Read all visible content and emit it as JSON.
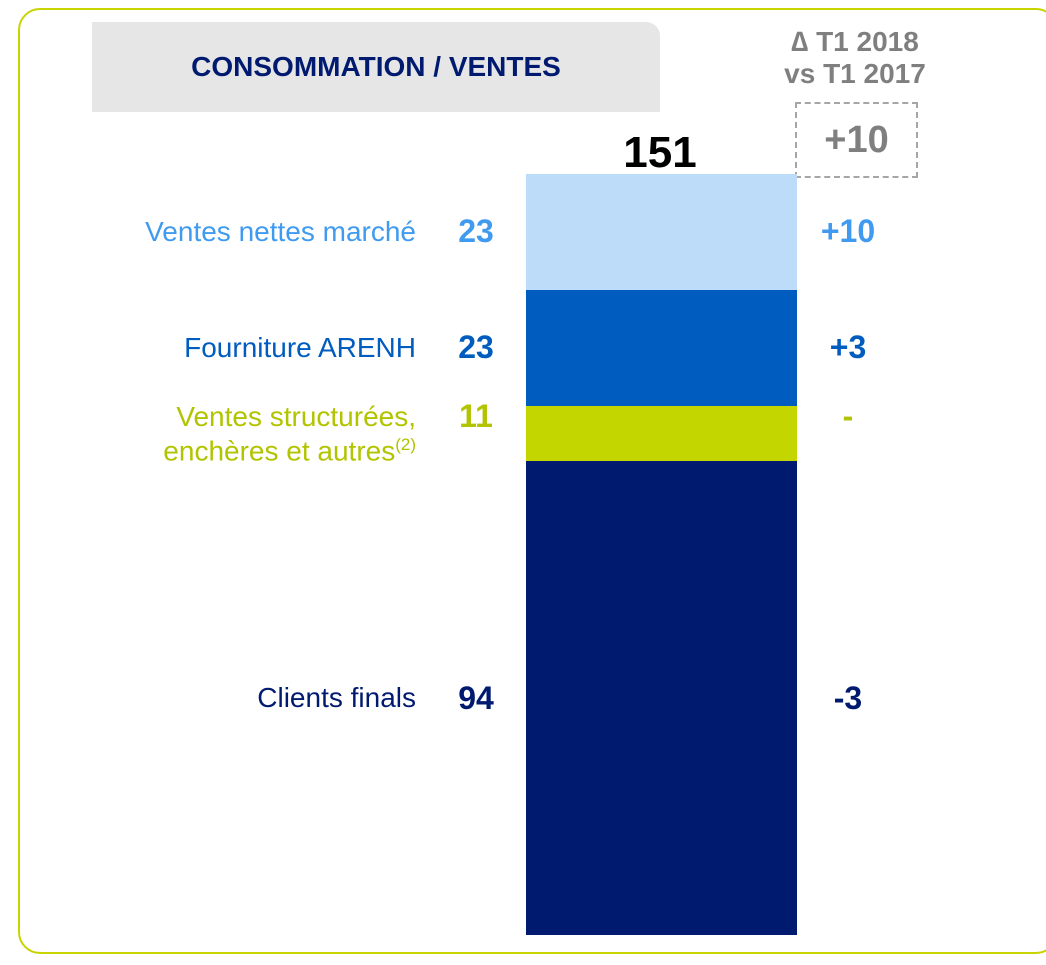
{
  "chart_data": {
    "type": "stacked_bar",
    "title": "CONSOMMATION / VENTES",
    "delta_header": [
      "∆ T1 2018",
      "vs T1 2017"
    ],
    "total": 151,
    "total_delta": 10,
    "total_delta_label": "+10",
    "series": [
      {
        "name": "Ventes nettes marché",
        "color": "#bddcfa",
        "label_color": "#3f9af0",
        "values": [
          23
        ],
        "delta": 10,
        "delta_label": "+10"
      },
      {
        "name": "Fourniture ARENH",
        "color": "#005cbf",
        "label_color": "#005cbf",
        "values": [
          23
        ],
        "delta": 3,
        "delta_label": "+3"
      },
      {
        "name": "Ventes structurées, enchères et autres",
        "note": "(2)",
        "color": "#c4d600",
        "label_color": "#b2c400",
        "values": [
          11
        ],
        "delta": null,
        "delta_label": "-"
      },
      {
        "name": "Clients finals",
        "color": "#001a70",
        "label_color": "#001a70",
        "values": [
          94
        ],
        "delta": -3,
        "delta_label": "-3"
      }
    ]
  }
}
